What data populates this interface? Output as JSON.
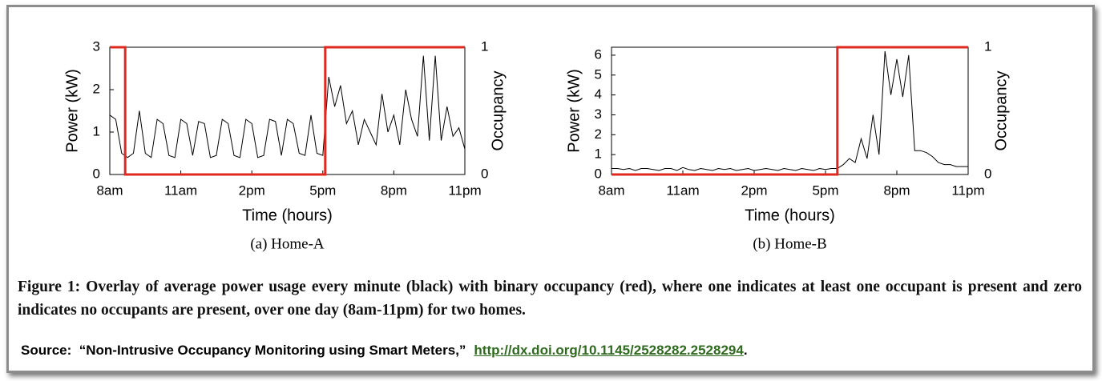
{
  "chart_data": [
    {
      "type": "line",
      "title": "(a) Home-A",
      "xlabel": "Time (hours)",
      "ylabel": "Power (kW)",
      "y2label": "Occupancy",
      "x": [
        8,
        8.25,
        8.5,
        8.75,
        9,
        9.25,
        9.5,
        9.75,
        10,
        10.25,
        10.5,
        10.75,
        11,
        11.25,
        11.5,
        11.75,
        12,
        12.25,
        12.5,
        12.75,
        13,
        13.25,
        13.5,
        13.75,
        14,
        14.25,
        14.5,
        14.75,
        15,
        15.25,
        15.5,
        15.75,
        16,
        16.25,
        16.5,
        16.75,
        17,
        17.25,
        17.5,
        17.75,
        18,
        18.25,
        18.5,
        18.75,
        19,
        19.25,
        19.5,
        19.75,
        20,
        20.25,
        20.5,
        20.75,
        21,
        21.25,
        21.5,
        21.75,
        22,
        22.25,
        22.5,
        22.75,
        23
      ],
      "series": [
        {
          "color": "#000000",
          "values": [
            1.4,
            1.3,
            0.5,
            0.4,
            0.5,
            1.5,
            0.5,
            0.4,
            1.3,
            1.2,
            0.45,
            0.4,
            1.3,
            1.2,
            0.45,
            1.25,
            1.2,
            0.4,
            0.45,
            1.3,
            1.2,
            0.45,
            0.4,
            1.3,
            1.2,
            0.4,
            0.45,
            1.3,
            1.25,
            0.45,
            1.3,
            1.2,
            0.5,
            0.45,
            1.4,
            0.5,
            0.45,
            2.3,
            1.6,
            2.1,
            1.2,
            1.5,
            0.7,
            1.3,
            1.0,
            0.7,
            1.9,
            1.0,
            1.4,
            0.7,
            2.0,
            1.3,
            0.9,
            2.8,
            0.8,
            2.8,
            0.8,
            1.6,
            0.9,
            1.1,
            0.6
          ]
        },
        {
          "color": "#e0281e",
          "axis": "y2",
          "x": [
            8,
            8.65,
            8.65,
            17.1,
            17.1,
            23
          ],
          "values": [
            1,
            1,
            0,
            0,
            1,
            1
          ]
        }
      ],
      "xlim": [
        8,
        23
      ],
      "xticks": [
        {
          "value": 8,
          "label": "8am"
        },
        {
          "value": 11,
          "label": "11am"
        },
        {
          "value": 14,
          "label": "2pm"
        },
        {
          "value": 17,
          "label": "5pm"
        },
        {
          "value": 20,
          "label": "8pm"
        },
        {
          "value": 23,
          "label": "11pm"
        }
      ],
      "ylim": [
        0,
        3
      ],
      "yticks": [
        0,
        1,
        2,
        3
      ],
      "y2lim": [
        0,
        1
      ],
      "y2ticks": [
        0,
        1
      ]
    },
    {
      "type": "line",
      "title": "(b) Home-B",
      "xlabel": "Time (hours)",
      "ylabel": "Power (kW)",
      "y2label": "Occupancy",
      "x": [
        8,
        8.25,
        8.5,
        8.75,
        9,
        9.25,
        9.5,
        9.75,
        10,
        10.25,
        10.5,
        10.75,
        11,
        11.25,
        11.5,
        11.75,
        12,
        12.25,
        12.5,
        12.75,
        13,
        13.25,
        13.5,
        13.75,
        14,
        14.25,
        14.5,
        14.75,
        15,
        15.25,
        15.5,
        15.75,
        16,
        16.25,
        16.5,
        16.75,
        17,
        17.25,
        17.5,
        17.75,
        18,
        18.25,
        18.5,
        18.75,
        19,
        19.25,
        19.5,
        19.75,
        20,
        20.25,
        20.5,
        20.75,
        21,
        21.25,
        21.5,
        21.75,
        22,
        22.25,
        22.5,
        22.75,
        23
      ],
      "series": [
        {
          "color": "#000000",
          "values": [
            0.3,
            0.3,
            0.25,
            0.3,
            0.2,
            0.3,
            0.3,
            0.25,
            0.2,
            0.3,
            0.3,
            0.2,
            0.35,
            0.25,
            0.2,
            0.3,
            0.25,
            0.2,
            0.3,
            0.25,
            0.3,
            0.2,
            0.25,
            0.3,
            0.2,
            0.25,
            0.3,
            0.25,
            0.2,
            0.3,
            0.25,
            0.2,
            0.3,
            0.25,
            0.2,
            0.3,
            0.25,
            0.3,
            0.3,
            0.5,
            0.8,
            0.6,
            1.8,
            0.8,
            3.0,
            1.0,
            6.2,
            4.0,
            5.8,
            3.9,
            6.0,
            1.2,
            1.2,
            1.1,
            0.9,
            0.6,
            0.5,
            0.5,
            0.4,
            0.4,
            0.4
          ]
        },
        {
          "color": "#e0281e",
          "axis": "y2",
          "x": [
            8,
            17.5,
            17.5,
            23
          ],
          "values": [
            0,
            0,
            1,
            1
          ]
        }
      ],
      "xlim": [
        8,
        23
      ],
      "xticks": [
        {
          "value": 8,
          "label": "8am"
        },
        {
          "value": 11,
          "label": "11am"
        },
        {
          "value": 14,
          "label": "2pm"
        },
        {
          "value": 17,
          "label": "5pm"
        },
        {
          "value": 20,
          "label": "8pm"
        },
        {
          "value": 23,
          "label": "11pm"
        }
      ],
      "ylim": [
        0,
        6.4
      ],
      "yticks": [
        0,
        1,
        2,
        3,
        4,
        5,
        6
      ],
      "y2lim": [
        0,
        1
      ],
      "y2ticks": [
        0,
        1
      ]
    }
  ],
  "caption": "Figure 1: Overlay of average power usage every minute (black) with binary occupancy (red), where one indicates at least one occupant is present and zero indicates no occupants are present, over one day (8am-11pm) for two homes.",
  "source": {
    "text": "Source:  “Non-Intrusive Occupancy Monitoring using Smart Meters,”",
    "link": "http://dx.doi.org/10.1145/2528282.2528294",
    "end": "."
  }
}
